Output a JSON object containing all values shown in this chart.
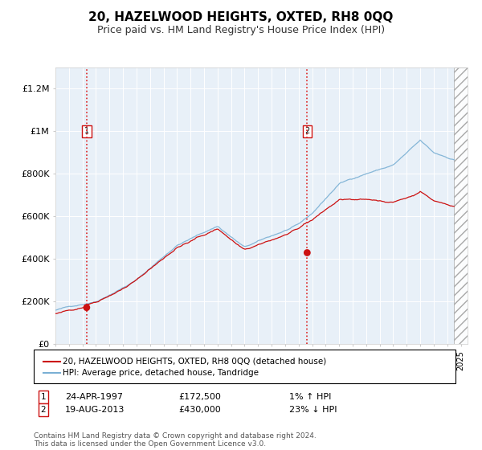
{
  "title": "20, HAZELWOOD HEIGHTS, OXTED, RH8 0QQ",
  "subtitle": "Price paid vs. HM Land Registry's House Price Index (HPI)",
  "title_fontsize": 11,
  "subtitle_fontsize": 9,
  "bg_color": "#ffffff",
  "chart_bg_color": "#e8f0f8",
  "ylim": [
    0,
    1300000
  ],
  "xlim_start": 1995.0,
  "xlim_end": 2025.5,
  "yticks": [
    0,
    200000,
    400000,
    600000,
    800000,
    1000000,
    1200000
  ],
  "ytick_labels": [
    "£0",
    "£200K",
    "£400K",
    "£600K",
    "£800K",
    "£1M",
    "£1.2M"
  ],
  "purchase1_x": 1997.31,
  "purchase1_y": 172500,
  "purchase1_label": "1",
  "purchase1_date": "24-APR-1997",
  "purchase1_price": "£172,500",
  "purchase1_hpi": "1% ↑ HPI",
  "purchase2_x": 2013.63,
  "purchase2_y": 430000,
  "purchase2_label": "2",
  "purchase2_date": "19-AUG-2013",
  "purchase2_price": "£430,000",
  "purchase2_hpi": "23% ↓ HPI",
  "red_line_color": "#cc1111",
  "blue_line_color": "#7ab0d4",
  "dashed_line_color": "#dd2222",
  "marker_color": "#cc1111",
  "legend_label_red": "20, HAZELWOOD HEIGHTS, OXTED, RH8 0QQ (detached house)",
  "legend_label_blue": "HPI: Average price, detached house, Tandridge",
  "footer": "Contains HM Land Registry data © Crown copyright and database right 2024.\nThis data is licensed under the Open Government Licence v3.0.",
  "hatch_start": 2024.5
}
